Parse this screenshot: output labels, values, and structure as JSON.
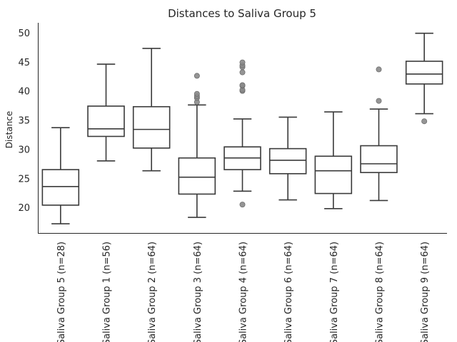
{
  "chart_data": {
    "type": "box",
    "title": "Distances to Saliva Group 5",
    "xlabel": "",
    "ylabel": "Distance",
    "ylim": [
      15.5,
      51.7
    ],
    "yticks": [
      20,
      25,
      30,
      35,
      40,
      45,
      50
    ],
    "grid": false,
    "colors": {
      "stroke": "#3a3a3a",
      "fill": "#ffffff",
      "flier": "#8a8a8a",
      "axis": "#262626"
    },
    "categories": [
      "Saliva Group 5 (n=28)",
      "Saliva Group 1 (n=56)",
      "Saliva Group 2 (n=64)",
      "Saliva Group 3 (n=64)",
      "Saliva Group 4 (n=64)",
      "Saliva Group 6 (n=64)",
      "Saliva Group 7 (n=64)",
      "Saliva Group 8 (n=64)",
      "Saliva Group 9 (n=64)"
    ],
    "boxes": [
      {
        "whislo": 17.2,
        "q1": 20.4,
        "med": 23.6,
        "q3": 26.5,
        "whishi": 33.7,
        "fliers": []
      },
      {
        "whislo": 28.0,
        "q1": 32.2,
        "med": 33.5,
        "q3": 37.4,
        "whishi": 44.6,
        "fliers": []
      },
      {
        "whislo": 26.3,
        "q1": 30.2,
        "med": 33.4,
        "q3": 37.3,
        "whishi": 47.3,
        "fliers": []
      },
      {
        "whislo": 18.3,
        "q1": 22.3,
        "med": 25.2,
        "q3": 28.5,
        "whishi": 37.6,
        "fliers": [
          38.1,
          38.8,
          39.1,
          39.5,
          42.6
        ]
      },
      {
        "whislo": 22.8,
        "q1": 26.5,
        "med": 28.5,
        "q3": 30.4,
        "whishi": 35.2,
        "fliers": [
          20.5,
          40.0,
          40.2,
          40.9,
          41.0,
          43.2,
          44.1,
          44.4,
          44.9
        ]
      },
      {
        "whislo": 21.3,
        "q1": 25.8,
        "med": 28.1,
        "q3": 30.1,
        "whishi": 35.5,
        "fliers": []
      },
      {
        "whislo": 19.8,
        "q1": 22.4,
        "med": 26.3,
        "q3": 28.8,
        "whishi": 36.4,
        "fliers": []
      },
      {
        "whislo": 21.2,
        "q1": 26.0,
        "med": 27.5,
        "q3": 30.6,
        "whishi": 36.9,
        "fliers": [
          38.3,
          43.7
        ]
      },
      {
        "whislo": 36.1,
        "q1": 41.2,
        "med": 42.9,
        "q3": 45.1,
        "whishi": 49.9,
        "fliers": [
          34.8
        ]
      }
    ]
  }
}
